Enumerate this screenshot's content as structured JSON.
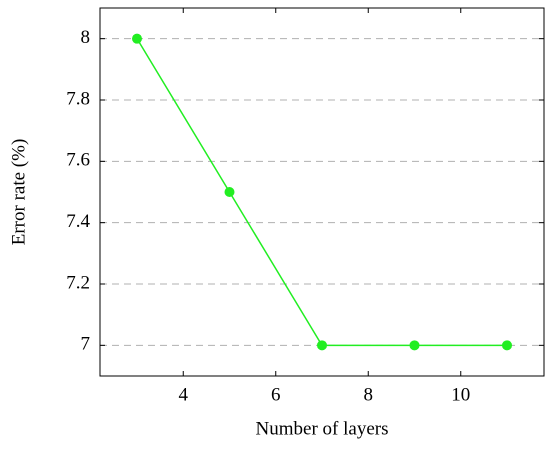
{
  "chart_data": {
    "type": "line",
    "x_label": "Number of layers",
    "y_label": "Error rate (%)",
    "x": [
      3,
      5,
      7,
      9,
      11
    ],
    "series": [
      {
        "color": "#22ee22",
        "values": [
          8,
          7.5,
          7,
          7,
          7
        ]
      }
    ],
    "xlim": [
      2.2,
      11.8
    ],
    "ylim": [
      6.9,
      8.1
    ],
    "xticks": [
      4,
      6,
      8,
      10
    ],
    "yticks": [
      7,
      7.2,
      7.4,
      7.6,
      7.8,
      8
    ],
    "grid": true
  }
}
